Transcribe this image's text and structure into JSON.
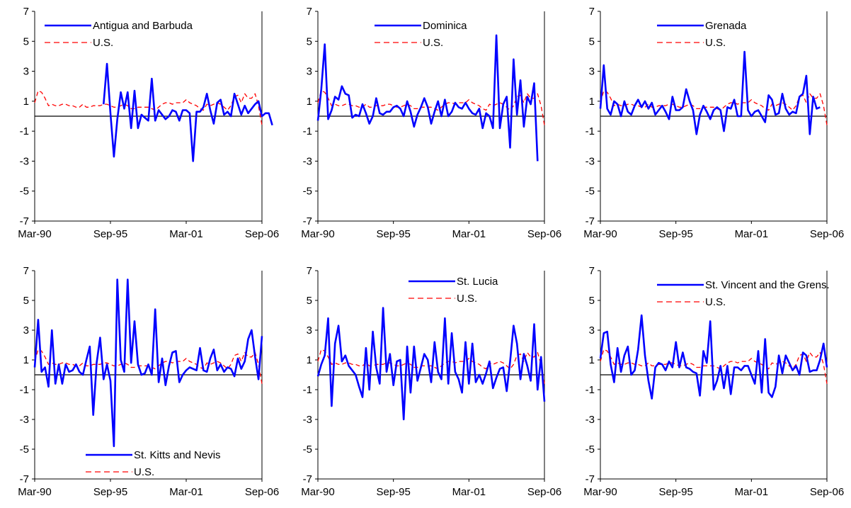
{
  "colors": {
    "country": "#0000FF",
    "us": "#FF0000",
    "axis": "#000000"
  },
  "chart_data": [
    {
      "type": "line",
      "xtick_labels": [
        "Mar-90",
        "Sep-95",
        "Mar-01",
        "Sep-06"
      ],
      "yticks": [
        -7,
        -5,
        -3,
        -1,
        1,
        3,
        5,
        7
      ],
      "ylim": [
        -7,
        7
      ],
      "xlim": [
        0,
        66
      ],
      "legend_position": "top-left",
      "series": [
        {
          "name": "Antigua and Barbuda",
          "style": "solid",
          "start": 20,
          "values": [
            0.8,
            3.5,
            0.2,
            -2.7,
            -0.2,
            1.6,
            0.5,
            1.6,
            -0.8,
            1.7,
            -0.8,
            0.1,
            -0.1,
            -0.3,
            2.5,
            -0.3,
            0.4,
            0.1,
            -0.2,
            0.0,
            0.4,
            0.3,
            -0.3,
            0.4,
            0.4,
            0.2,
            -3.0,
            0.3,
            0.3,
            0.6,
            1.5,
            0.4,
            -0.5,
            0.9,
            1.1,
            0.1,
            0.3,
            0.0,
            1.5,
            0.8,
            0.1,
            0.7,
            0.2,
            0.5,
            0.8,
            1.0,
            0.0,
            0.2,
            0.2,
            -0.6
          ]
        },
        {
          "name": "U.S.",
          "style": "dashed",
          "start": 0,
          "values": [
            0.9,
            1.7,
            1.6,
            1.2,
            0.7,
            0.8,
            0.7,
            0.7,
            0.8,
            0.8,
            0.7,
            0.7,
            0.6,
            0.6,
            0.8,
            0.6,
            0.6,
            0.7,
            0.7,
            0.7,
            0.8,
            0.8,
            0.7,
            0.6,
            0.6,
            0.7,
            0.8,
            0.7,
            0.5,
            0.5,
            0.6,
            0.6,
            0.6,
            0.6,
            0.5,
            0.4,
            0.6,
            0.8,
            0.9,
            0.9,
            0.8,
            0.9,
            0.9,
            0.9,
            1.1,
            0.9,
            0.8,
            0.7,
            0.5,
            0.4,
            0.8,
            0.7,
            0.8,
            0.9,
            0.8,
            0.6,
            0.4,
            0.7,
            1.3,
            1.4,
            0.9,
            1.5,
            1.2,
            1.2,
            1.5,
            0.7,
            -0.6
          ]
        }
      ]
    },
    {
      "type": "line",
      "xtick_labels": [
        "Mar-90",
        "Sep-95",
        "Mar-01",
        "Sep-06"
      ],
      "yticks": [
        -7,
        -5,
        -3,
        -1,
        1,
        3,
        5,
        7
      ],
      "ylim": [
        -7,
        7
      ],
      "xlim": [
        0,
        66
      ],
      "legend_position": "top-center",
      "series": [
        {
          "name": "Dominica",
          "style": "solid",
          "start": 0,
          "values": [
            -0.3,
            1.8,
            4.8,
            -0.2,
            0.4,
            1.3,
            1.1,
            2.0,
            1.5,
            1.4,
            -0.1,
            0.1,
            0.0,
            0.8,
            0.2,
            -0.5,
            0.0,
            1.2,
            0.2,
            0.1,
            0.3,
            0.3,
            0.6,
            0.7,
            0.5,
            0.0,
            1.0,
            0.3,
            -0.7,
            0.1,
            0.6,
            1.2,
            0.6,
            -0.5,
            0.3,
            1.0,
            0.0,
            1.1,
            0.0,
            0.3,
            0.9,
            0.6,
            0.5,
            0.9,
            0.5,
            0.2,
            0.1,
            0.5,
            -0.8,
            0.2,
            0.0,
            -0.8,
            5.4,
            -0.8,
            0.8,
            1.3,
            -2.1,
            3.8,
            0.1,
            2.4,
            -0.7,
            1.3,
            0.8,
            2.2,
            -3.0
          ]
        },
        {
          "name": "U.S.",
          "style": "dashed",
          "start": 0,
          "values": [
            0.9,
            1.7,
            1.6,
            1.2,
            0.7,
            0.8,
            0.7,
            0.7,
            0.8,
            0.8,
            0.7,
            0.7,
            0.6,
            0.6,
            0.8,
            0.6,
            0.6,
            0.7,
            0.7,
            0.7,
            0.8,
            0.8,
            0.7,
            0.6,
            0.6,
            0.7,
            0.8,
            0.7,
            0.5,
            0.5,
            0.6,
            0.6,
            0.6,
            0.6,
            0.5,
            0.4,
            0.6,
            0.8,
            0.9,
            0.9,
            0.8,
            0.9,
            0.9,
            0.9,
            1.1,
            0.9,
            0.8,
            0.7,
            0.5,
            0.4,
            0.8,
            0.7,
            0.8,
            0.9,
            0.8,
            0.6,
            0.4,
            0.7,
            1.3,
            1.4,
            0.9,
            1.5,
            1.2,
            1.2,
            1.5,
            0.7,
            -0.6
          ]
        }
      ]
    },
    {
      "type": "line",
      "xtick_labels": [
        "Mar-90",
        "Sep-95",
        "Mar-01",
        "Sep-06"
      ],
      "yticks": [
        -7,
        -5,
        -3,
        -1,
        1,
        3,
        5,
        7
      ],
      "ylim": [
        -7,
        7
      ],
      "xlim": [
        0,
        66
      ],
      "legend_position": "top-center",
      "series": [
        {
          "name": "Grenada",
          "style": "solid",
          "start": 0,
          "values": [
            0.5,
            3.4,
            0.5,
            0.1,
            1.0,
            0.8,
            0.0,
            1.0,
            0.3,
            0.1,
            0.7,
            1.1,
            0.6,
            1.0,
            0.5,
            0.9,
            0.1,
            0.4,
            0.7,
            0.3,
            -0.2,
            1.3,
            0.4,
            0.4,
            0.6,
            1.8,
            1.0,
            0.4,
            -1.2,
            0.1,
            0.7,
            0.3,
            -0.2,
            0.4,
            0.6,
            0.4,
            -1.0,
            0.6,
            0.5,
            1.1,
            0.0,
            0.0,
            4.3,
            0.4,
            0.0,
            0.3,
            0.4,
            0.0,
            -0.4,
            1.4,
            1.1,
            0.1,
            0.2,
            1.5,
            0.5,
            0.1,
            0.3,
            0.2,
            1.3,
            1.5,
            2.7,
            -1.2,
            1.3,
            0.5,
            0.6
          ]
        },
        {
          "name": "U.S.",
          "style": "dashed",
          "start": 0,
          "values": [
            0.9,
            1.7,
            1.6,
            1.2,
            0.7,
            0.8,
            0.7,
            0.7,
            0.8,
            0.8,
            0.7,
            0.7,
            0.6,
            0.6,
            0.8,
            0.6,
            0.6,
            0.7,
            0.7,
            0.7,
            0.8,
            0.8,
            0.7,
            0.6,
            0.6,
            0.7,
            0.8,
            0.7,
            0.5,
            0.5,
            0.6,
            0.6,
            0.6,
            0.6,
            0.5,
            0.4,
            0.6,
            0.8,
            0.9,
            0.9,
            0.8,
            0.9,
            0.9,
            0.9,
            1.1,
            0.9,
            0.8,
            0.7,
            0.5,
            0.4,
            0.8,
            0.7,
            0.8,
            0.9,
            0.8,
            0.6,
            0.4,
            0.7,
            1.3,
            1.4,
            0.9,
            1.5,
            1.2,
            1.2,
            1.5,
            0.7,
            -0.6
          ]
        }
      ]
    },
    {
      "type": "line",
      "xtick_labels": [
        "Mar-90",
        "Sep-95",
        "Mar-01",
        "Sep-06"
      ],
      "yticks": [
        -7,
        -5,
        -3,
        -1,
        1,
        3,
        5,
        7
      ],
      "ylim": [
        -7,
        7
      ],
      "xlim": [
        0,
        66
      ],
      "legend_position": "bottom-right",
      "series": [
        {
          "name": "St. Kitts and Nevis",
          "style": "solid",
          "start": 0,
          "values": [
            0.5,
            3.7,
            0.2,
            0.5,
            -0.8,
            3.0,
            -0.6,
            0.7,
            -0.6,
            0.7,
            0.2,
            0.3,
            0.7,
            0.2,
            0.0,
            1.0,
            1.9,
            -2.7,
            0.8,
            2.5,
            -0.3,
            0.7,
            -0.4,
            -4.8,
            6.4,
            1.0,
            0.2,
            6.4,
            0.8,
            3.6,
            0.7,
            0.0,
            0.1,
            0.7,
            0.0,
            4.4,
            -0.5,
            1.1,
            -0.7,
            0.6,
            1.5,
            1.6,
            -0.5,
            0.0,
            0.3,
            0.5,
            0.4,
            0.3,
            1.8,
            0.3,
            0.2,
            1.1,
            1.7,
            0.3,
            0.7,
            0.2,
            0.5,
            0.4,
            -0.1,
            1.1,
            0.4,
            0.9,
            2.4,
            3.0,
            1.2,
            -0.3,
            2.6
          ]
        },
        {
          "name": "U.S.",
          "style": "dashed",
          "start": 0,
          "values": [
            0.9,
            1.7,
            1.6,
            1.2,
            0.7,
            0.8,
            0.7,
            0.7,
            0.8,
            0.8,
            0.7,
            0.7,
            0.6,
            0.6,
            0.8,
            0.6,
            0.6,
            0.7,
            0.7,
            0.7,
            0.8,
            0.8,
            0.7,
            0.6,
            0.6,
            0.7,
            0.8,
            0.7,
            0.5,
            0.5,
            0.6,
            0.6,
            0.6,
            0.6,
            0.5,
            0.4,
            0.6,
            0.8,
            0.9,
            0.9,
            0.8,
            0.9,
            0.9,
            0.9,
            1.1,
            0.9,
            0.8,
            0.7,
            0.5,
            0.4,
            0.8,
            0.7,
            0.8,
            0.9,
            0.8,
            0.6,
            0.4,
            0.7,
            1.3,
            1.4,
            0.9,
            1.5,
            1.2,
            1.2,
            1.5,
            0.7,
            -0.6
          ]
        }
      ]
    },
    {
      "type": "line",
      "xtick_labels": [
        "Mar-90",
        "Sep-95",
        "Mar-01",
        "Sep-06"
      ],
      "yticks": [
        -7,
        -5,
        -3,
        -1,
        1,
        3,
        5,
        7
      ],
      "ylim": [
        -7,
        7
      ],
      "xlim": [
        0,
        66
      ],
      "legend_position": "top-right",
      "series": [
        {
          "name": "St. Lucia",
          "style": "solid",
          "start": 0,
          "values": [
            -0.1,
            0.7,
            1.3,
            3.8,
            -2.1,
            2.1,
            3.3,
            0.9,
            1.3,
            0.6,
            0.3,
            0.0,
            -0.8,
            -1.5,
            1.8,
            -1.0,
            2.9,
            0.5,
            -0.6,
            4.5,
            0.2,
            1.4,
            -0.7,
            0.9,
            1.0,
            -3.0,
            1.9,
            -1.2,
            1.9,
            -0.4,
            0.5,
            1.4,
            1.0,
            -0.5,
            2.2,
            0.2,
            -0.3,
            3.8,
            -0.6,
            2.8,
            0.2,
            -0.3,
            -1.2,
            2.2,
            -0.6,
            2.1,
            -0.5,
            0.0,
            -0.6,
            0.1,
            0.9,
            -0.9,
            -0.2,
            0.4,
            0.5,
            -1.1,
            0.9,
            3.3,
            2.1,
            -0.3,
            1.4,
            0.6,
            -0.4,
            3.4,
            -1.0,
            1.2,
            -1.8
          ]
        },
        {
          "name": "U.S.",
          "style": "dashed",
          "start": 0,
          "values": [
            0.9,
            1.7,
            1.6,
            1.2,
            0.7,
            0.8,
            0.7,
            0.7,
            0.8,
            0.8,
            0.7,
            0.7,
            0.6,
            0.6,
            0.8,
            0.6,
            0.6,
            0.7,
            0.7,
            0.7,
            0.8,
            0.8,
            0.7,
            0.6,
            0.6,
            0.7,
            0.8,
            0.7,
            0.5,
            0.5,
            0.6,
            0.6,
            0.6,
            0.6,
            0.5,
            0.4,
            0.6,
            0.8,
            0.9,
            0.9,
            0.8,
            0.9,
            0.9,
            0.9,
            1.1,
            0.9,
            0.8,
            0.7,
            0.5,
            0.4,
            0.8,
            0.7,
            0.8,
            0.9,
            0.8,
            0.6,
            0.4,
            0.7,
            1.3,
            1.4,
            0.9,
            1.5,
            1.2,
            1.2,
            1.5,
            0.7,
            -0.6
          ]
        }
      ]
    },
    {
      "type": "line",
      "xtick_labels": [
        "Mar-90",
        "Sep-95",
        "Mar-01",
        "Sep-06"
      ],
      "yticks": [
        -7,
        -5,
        -3,
        -1,
        1,
        3,
        5,
        7
      ],
      "ylim": [
        -7,
        7
      ],
      "xlim": [
        0,
        66
      ],
      "legend_position": "top-center",
      "series": [
        {
          "name": "St. Vincent and the Grens.",
          "style": "solid",
          "start": 0,
          "values": [
            1.1,
            2.8,
            2.9,
            0.7,
            -0.5,
            1.8,
            0.2,
            1.3,
            1.9,
            0.0,
            0.3,
            1.7,
            4.0,
            1.3,
            -0.4,
            -1.6,
            0.5,
            0.8,
            0.7,
            0.3,
            0.9,
            0.5,
            2.2,
            0.5,
            1.5,
            0.5,
            0.4,
            0.2,
            0.1,
            -1.4,
            1.6,
            0.8,
            3.6,
            -1.0,
            -0.4,
            0.6,
            -0.9,
            0.6,
            -1.3,
            0.5,
            0.5,
            0.3,
            0.6,
            0.6,
            0.0,
            -0.6,
            1.6,
            -1.2,
            2.4,
            -1.2,
            -1.5,
            -0.8,
            1.3,
            0.1,
            1.3,
            0.8,
            0.3,
            0.6,
            0.0,
            1.5,
            1.3,
            0.2,
            0.3,
            0.3,
            1.0,
            2.1,
            0.5
          ]
        },
        {
          "name": "U.S.",
          "style": "dashed",
          "start": 0,
          "values": [
            0.9,
            1.7,
            1.6,
            1.2,
            0.7,
            0.8,
            0.7,
            0.7,
            0.8,
            0.8,
            0.7,
            0.7,
            0.6,
            0.6,
            0.8,
            0.6,
            0.6,
            0.7,
            0.7,
            0.7,
            0.8,
            0.8,
            0.7,
            0.6,
            0.6,
            0.7,
            0.8,
            0.7,
            0.5,
            0.5,
            0.6,
            0.6,
            0.6,
            0.6,
            0.5,
            0.4,
            0.6,
            0.8,
            0.9,
            0.9,
            0.8,
            0.9,
            0.9,
            0.9,
            1.1,
            0.9,
            0.8,
            0.7,
            0.5,
            0.4,
            0.8,
            0.7,
            0.8,
            0.9,
            0.8,
            0.6,
            0.4,
            0.7,
            1.3,
            1.4,
            0.9,
            1.5,
            1.2,
            1.2,
            1.5,
            0.7,
            -0.6
          ]
        }
      ]
    }
  ]
}
